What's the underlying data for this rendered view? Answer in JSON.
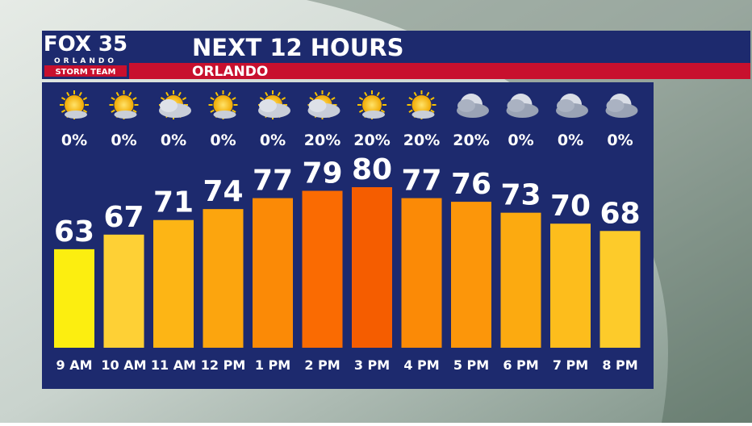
{
  "logo": {
    "brand": "FOX 35",
    "city": "ORLANDO",
    "team": "STORM TEAM"
  },
  "chart_data": {
    "type": "bar",
    "title": "NEXT 12 HOURS",
    "subtitle": "ORLANDO",
    "categories": [
      "9 AM",
      "10 AM",
      "11 AM",
      "12 PM",
      "1 PM",
      "2 PM",
      "3 PM",
      "4 PM",
      "5 PM",
      "6 PM",
      "7 PM",
      "8 PM"
    ],
    "values": [
      63,
      67,
      71,
      74,
      77,
      79,
      80,
      77,
      76,
      73,
      70,
      68
    ],
    "colors": [
      "#fcee10",
      "#fed035",
      "#fdb515",
      "#fca50e",
      "#fb8a06",
      "#fa6b02",
      "#f55d00",
      "#fb8a06",
      "#fc960a",
      "#fcaa10",
      "#fdbd1c",
      "#fdcb2a"
    ],
    "precip_values": [
      0,
      0,
      0,
      0,
      0,
      20,
      20,
      20,
      20,
      0,
      0,
      0
    ],
    "precip_labels": [
      "0%",
      "0%",
      "0%",
      "0%",
      "0%",
      "20%",
      "20%",
      "20%",
      "20%",
      "0%",
      "0%",
      "0%"
    ],
    "icons": [
      "sun",
      "sun",
      "cloud",
      "sun",
      "cloud",
      "cloud",
      "sun",
      "sun",
      "night",
      "night",
      "night",
      "night"
    ],
    "ylim": [
      36,
      80
    ]
  }
}
